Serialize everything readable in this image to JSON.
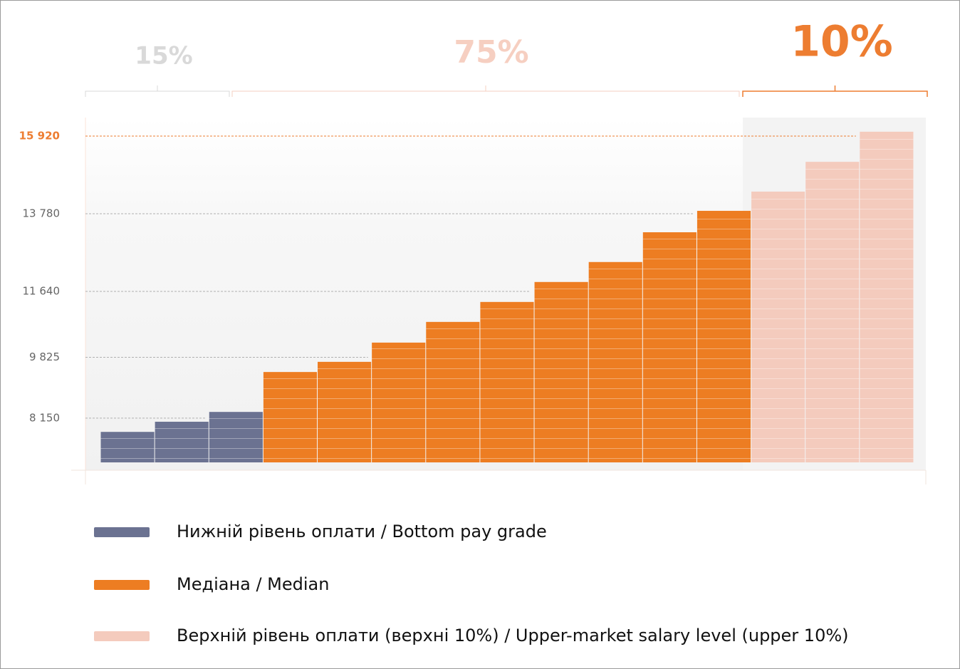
{
  "chart_data": {
    "type": "bar",
    "ylim": [
      6930,
      16430
    ],
    "yticks": [
      {
        "value": 15920,
        "label": "15 920"
      },
      {
        "value": 13780,
        "label": "13 780"
      },
      {
        "value": 11640,
        "label": "11 640"
      },
      {
        "value": 9825,
        "label": "9 825"
      },
      {
        "value": 8150,
        "label": "8 150"
      }
    ],
    "highlight_color": "#ed7d31",
    "series": [
      {
        "name": "Нижній рівень оплати / Bottom pay grade",
        "color": "#6b7291",
        "values": [
          7770,
          8050,
          8320
        ],
        "share": {
          "value": 15,
          "label": "15%",
          "color": "#d9d9d9"
        }
      },
      {
        "name": "Медіана / Median",
        "color": "#ed7d22",
        "values": [
          9420,
          9700,
          10230,
          10800,
          11350,
          11900,
          12450,
          13270,
          13860
        ],
        "share": {
          "value": 75,
          "label": "75%",
          "color": "#f6cfc1"
        }
      },
      {
        "name": "Верхній рівень оплати (верхні 10%) / Upper-market salary level (upper 10%)",
        "color": "#f4cbbd",
        "values": [
          14390,
          15210,
          16040
        ],
        "share": {
          "value": 10,
          "label": "10%",
          "color": "#ed7d31"
        }
      }
    ]
  }
}
